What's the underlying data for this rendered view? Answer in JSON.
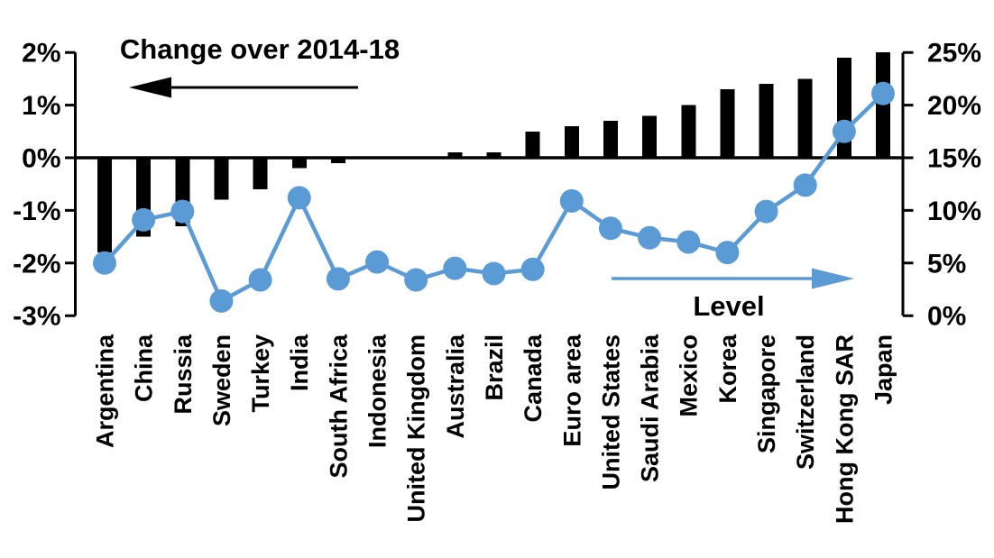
{
  "chart_data": {
    "type": "combo",
    "title": "",
    "categories": [
      "Argentina",
      "China",
      "Russia",
      "Sweden",
      "Turkey",
      "India",
      "South Africa",
      "Indonesia",
      "United Kingdom",
      "Australia",
      "Brazil",
      "Canada",
      "Euro area",
      "United States",
      "Saudi Arabia",
      "Mexico",
      "Korea",
      "Singapore",
      "Switzerland",
      "Hong Kong SAR",
      "Japan"
    ],
    "series": [
      {
        "name": "Change over 2014-18",
        "type": "bar",
        "axis": "left",
        "unit": "%",
        "color": "#000000",
        "values": [
          -1.8,
          -1.5,
          -1.3,
          -0.8,
          -0.6,
          -0.2,
          -0.1,
          0,
          0,
          0.1,
          0.1,
          0.5,
          0.6,
          0.7,
          0.8,
          1.0,
          1.3,
          1.4,
          1.5,
          1.9,
          2.0
        ]
      },
      {
        "name": "Level",
        "type": "line",
        "axis": "right",
        "unit": "%",
        "color": "#5B9BD5",
        "values": [
          5.0,
          9.1,
          9.9,
          1.4,
          3.4,
          11.2,
          3.5,
          5.1,
          3.4,
          4.5,
          4.0,
          4.4,
          10.9,
          8.3,
          7.4,
          7.0,
          6.0,
          9.9,
          12.4,
          17.5,
          21.1
        ]
      }
    ],
    "left_axis": {
      "min": -3,
      "max": 2,
      "tick_values": [
        2,
        1,
        0,
        -1,
        -2,
        -3
      ],
      "tick_labels": [
        "2%",
        "1%",
        "0%",
        "-1%",
        "-2%",
        "-3%"
      ]
    },
    "right_axis": {
      "min": 0,
      "max": 25,
      "tick_values": [
        25,
        20,
        15,
        10,
        5,
        0
      ],
      "tick_labels": [
        "25%",
        "20%",
        "15%",
        "10%",
        "5%",
        "0%"
      ]
    },
    "annotations": [
      {
        "text": "Change over 2014-18",
        "arrow_direction": "left",
        "color": "#000000"
      },
      {
        "text": "Level",
        "arrow_direction": "right",
        "color": "#5B9BD5"
      }
    ],
    "grid": false,
    "legend_position": "in-plot arrows",
    "background": "#FFFFFF"
  }
}
